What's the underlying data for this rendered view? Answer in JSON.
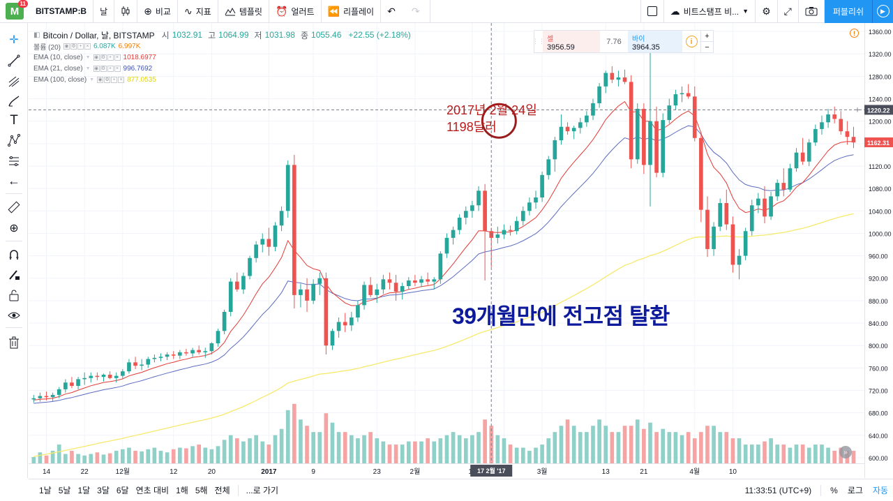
{
  "toolbar": {
    "symbol": "BITSTAMP:B",
    "interval": "날",
    "compare": "비교",
    "indicators": "지표",
    "templates": "템플릿",
    "alert": "얼러트",
    "replay": "리플레이",
    "exchange": "비트스탬프 비...",
    "publish": "퍼블리쉬",
    "logo_letter": "M",
    "logo_badge": "11"
  },
  "legend": {
    "title": "Bitcoin / Dollar, 날, BITSTAMP",
    "open_label": "시",
    "open": "1032.91",
    "high_label": "고",
    "high": "1064.99",
    "low_label": "저",
    "low": "1031.98",
    "close_label": "종",
    "close": "1055.46",
    "change": "+22.55 (+2.18%)"
  },
  "indicators": [
    {
      "name": "볼륨 (20)",
      "v1": "6.087K",
      "v2": "6.997K",
      "c1": "#26a69a",
      "c2": "#f57c00"
    },
    {
      "name": "EMA (10, close)",
      "v1": "1018.6977",
      "c1": "#e53935"
    },
    {
      "name": "EMA (21, close)",
      "v1": "996.7692",
      "c1": "#3f51b5"
    },
    {
      "name": "EMA (100, close)",
      "v1": "877.0535",
      "c1": "#f2e33c"
    }
  ],
  "trade": {
    "sell_label": "셀",
    "sell_price": "3956.59",
    "spread": "7.76",
    "buy_label": "바이",
    "buy_price": "3964.35",
    "plus": "+",
    "minus": "−"
  },
  "annotations": {
    "date_line1": "2017년 2월 24일",
    "date_line2": "1198달러",
    "headline": "39개월만에 전고점 탈환"
  },
  "bottombar": {
    "ranges": [
      "1날",
      "5날",
      "1달",
      "3달",
      "6달",
      "연초 대비",
      "1해",
      "5해",
      "전체"
    ],
    "goto": "...로 가기",
    "time": "11:33:51 (UTC+9)",
    "percent": "%",
    "log": "로그",
    "auto": "자동"
  },
  "chart_data": {
    "type": "candlestick",
    "title": "Bitcoin / Dollar, 날, BITSTAMP",
    "ylim": [
      590,
      1375
    ],
    "price_ticks": [
      600,
      640,
      680,
      720,
      760,
      800,
      840,
      880,
      920,
      960,
      1000,
      1040,
      1080,
      1120,
      1160,
      1200,
      1240,
      1280,
      1320,
      1360
    ],
    "x_tick_labels": [
      {
        "label": "14",
        "i": 2
      },
      {
        "label": "22",
        "i": 8
      },
      {
        "label": "12월",
        "i": 14
      },
      {
        "label": "12",
        "i": 22
      },
      {
        "label": "20",
        "i": 28
      },
      {
        "label": "2017",
        "i": 37
      },
      {
        "label": "9",
        "i": 44
      },
      {
        "label": "23",
        "i": 54
      },
      {
        "label": "2월",
        "i": 60
      },
      {
        "label": "13",
        "i": 69
      },
      {
        "label": "21",
        "i": 74
      },
      {
        "label": "3월",
        "i": 80
      },
      {
        "label": "13",
        "i": 90
      },
      {
        "label": "21",
        "i": 96
      },
      {
        "label": "4월",
        "i": 104
      },
      {
        "label": "10",
        "i": 110
      }
    ],
    "crosshair": {
      "date_label": "17 2월 '17",
      "price_label": "1220.22",
      "i": 72,
      "price": 1220.22
    },
    "last_price_label": "1162.31",
    "last_price": 1162.31,
    "annotation_circle": {
      "i": 73,
      "price": 1198
    },
    "colors": {
      "up": "#26a69a",
      "down": "#ef5350",
      "ema10": "#e53935",
      "ema21": "#5c6bc0",
      "ema100": "#f7e96b",
      "vol_up": "#8fd0c8",
      "vol_down": "#f5a3a3"
    },
    "ohlc": [
      [
        704,
        712,
        698,
        706
      ],
      [
        706,
        716,
        700,
        710
      ],
      [
        710,
        718,
        702,
        708
      ],
      [
        708,
        716,
        700,
        712
      ],
      [
        712,
        726,
        706,
        722
      ],
      [
        722,
        740,
        716,
        734
      ],
      [
        734,
        744,
        724,
        728
      ],
      [
        728,
        744,
        722,
        740
      ],
      [
        740,
        752,
        730,
        742
      ],
      [
        742,
        752,
        734,
        746
      ],
      [
        746,
        752,
        738,
        744
      ],
      [
        744,
        750,
        736,
        748
      ],
      [
        748,
        754,
        740,
        742
      ],
      [
        742,
        752,
        734,
        746
      ],
      [
        746,
        758,
        740,
        754
      ],
      [
        754,
        776,
        750,
        770
      ],
      [
        770,
        780,
        758,
        764
      ],
      [
        764,
        776,
        756,
        766
      ],
      [
        766,
        780,
        760,
        776
      ],
      [
        776,
        784,
        770,
        778
      ],
      [
        778,
        786,
        772,
        780
      ],
      [
        780,
        788,
        774,
        784
      ],
      [
        784,
        790,
        776,
        782
      ],
      [
        782,
        792,
        776,
        788
      ],
      [
        788,
        794,
        782,
        786
      ],
      [
        786,
        796,
        780,
        792
      ],
      [
        792,
        800,
        784,
        788
      ],
      [
        788,
        796,
        778,
        790
      ],
      [
        790,
        806,
        784,
        804
      ],
      [
        804,
        830,
        798,
        826
      ],
      [
        826,
        864,
        820,
        860
      ],
      [
        860,
        920,
        852,
        914
      ],
      [
        914,
        930,
        896,
        900
      ],
      [
        900,
        930,
        892,
        924
      ],
      [
        924,
        960,
        918,
        956
      ],
      [
        956,
        986,
        948,
        980
      ],
      [
        980,
        1000,
        966,
        990
      ],
      [
        990,
        1010,
        960,
        976
      ],
      [
        976,
        1020,
        968,
        1014
      ],
      [
        1014,
        1048,
        1004,
        1040
      ],
      [
        1040,
        1130,
        1028,
        1122
      ],
      [
        1122,
        1140,
        866,
        890
      ],
      [
        890,
        910,
        868,
        900
      ],
      [
        900,
        920,
        860,
        880
      ],
      [
        880,
        918,
        874,
        910
      ],
      [
        910,
        930,
        890,
        920
      ],
      [
        920,
        930,
        784,
        800
      ],
      [
        800,
        830,
        792,
        826
      ],
      [
        826,
        850,
        814,
        842
      ],
      [
        842,
        858,
        824,
        836
      ],
      [
        836,
        860,
        826,
        850
      ],
      [
        850,
        880,
        842,
        872
      ],
      [
        872,
        914,
        864,
        908
      ],
      [
        908,
        922,
        886,
        890
      ],
      [
        890,
        910,
        876,
        900
      ],
      [
        900,
        926,
        892,
        918
      ],
      [
        918,
        930,
        900,
        912
      ],
      [
        912,
        926,
        880,
        896
      ],
      [
        896,
        912,
        882,
        906
      ],
      [
        906,
        922,
        900,
        916
      ],
      [
        916,
        926,
        906,
        912
      ],
      [
        912,
        924,
        904,
        918
      ],
      [
        918,
        930,
        908,
        914
      ],
      [
        914,
        922,
        900,
        918
      ],
      [
        918,
        968,
        910,
        964
      ],
      [
        964,
        1000,
        956,
        992
      ],
      [
        992,
        1012,
        980,
        1006
      ],
      [
        1006,
        1034,
        998,
        1028
      ],
      [
        1028,
        1048,
        1016,
        1040
      ],
      [
        1040,
        1058,
        1028,
        1050
      ],
      [
        1050,
        1084,
        1040,
        1076
      ],
      [
        1076,
        1088,
        916,
        1004
      ],
      [
        1004,
        1010,
        940,
        992
      ],
      [
        992,
        1012,
        982,
        998
      ],
      [
        998,
        1016,
        990,
        1006
      ],
      [
        1006,
        1014,
        996,
        1004
      ],
      [
        1004,
        1030,
        998,
        1022
      ],
      [
        1022,
        1048,
        1014,
        1040
      ],
      [
        1040,
        1064,
        1032,
        1055
      ],
      [
        1055,
        1076,
        1044,
        1064
      ],
      [
        1064,
        1110,
        1056,
        1104
      ],
      [
        1104,
        1138,
        1096,
        1132
      ],
      [
        1132,
        1172,
        1110,
        1166
      ],
      [
        1166,
        1212,
        1158,
        1190
      ],
      [
        1190,
        1198,
        1176,
        1182
      ],
      [
        1182,
        1192,
        1168,
        1188
      ],
      [
        1188,
        1206,
        1178,
        1198
      ],
      [
        1198,
        1218,
        1190,
        1210
      ],
      [
        1210,
        1240,
        1202,
        1232
      ],
      [
        1232,
        1268,
        1224,
        1262
      ],
      [
        1262,
        1290,
        1250,
        1286
      ],
      [
        1286,
        1298,
        1268,
        1274
      ],
      [
        1274,
        1290,
        1262,
        1278
      ],
      [
        1278,
        1292,
        1266,
        1270
      ],
      [
        1270,
        1282,
        1116,
        1132
      ],
      [
        1132,
        1232,
        1124,
        1222
      ],
      [
        1222,
        1232,
        1106,
        1122
      ],
      [
        1122,
        1360,
        1048,
        1200
      ],
      [
        1200,
        1226,
        1100,
        1108
      ],
      [
        1108,
        1214,
        1100,
        1202
      ],
      [
        1202,
        1240,
        1196,
        1228
      ],
      [
        1228,
        1256,
        1220,
        1248
      ],
      [
        1248,
        1262,
        1234,
        1250
      ],
      [
        1250,
        1266,
        1240,
        1244
      ],
      [
        1244,
        1262,
        1164,
        1170
      ],
      [
        1170,
        1180,
        1020,
        1042
      ],
      [
        1042,
        1066,
        958,
        972
      ],
      [
        972,
        1020,
        960,
        1012
      ],
      [
        1012,
        1062,
        1004,
        1054
      ],
      [
        1054,
        1078,
        1006,
        1016
      ],
      [
        1016,
        1030,
        930,
        944
      ],
      [
        944,
        972,
        918,
        960
      ],
      [
        960,
        1010,
        952,
        1004
      ],
      [
        1004,
        1060,
        996,
        1050
      ],
      [
        1050,
        1072,
        1036,
        1062
      ],
      [
        1062,
        1084,
        1018,
        1030
      ],
      [
        1030,
        1074,
        1024,
        1066
      ],
      [
        1066,
        1096,
        1058,
        1090
      ],
      [
        1090,
        1116,
        1066,
        1078
      ],
      [
        1078,
        1124,
        1074,
        1116
      ],
      [
        1116,
        1152,
        1110,
        1144
      ],
      [
        1144,
        1170,
        1122,
        1128
      ],
      [
        1128,
        1168,
        1120,
        1162
      ],
      [
        1162,
        1194,
        1156,
        1186
      ],
      [
        1186,
        1210,
        1176,
        1198
      ],
      [
        1198,
        1222,
        1188,
        1212
      ],
      [
        1212,
        1226,
        1196,
        1204
      ],
      [
        1204,
        1218,
        1176,
        1182
      ],
      [
        1182,
        1200,
        1158,
        1172
      ],
      [
        1172,
        1190,
        1152,
        1162
      ]
    ],
    "volume": [
      620,
      635,
      625,
      640,
      660,
      630,
      640,
      630,
      625,
      630,
      635,
      628,
      632,
      640,
      645,
      650,
      640,
      638,
      645,
      650,
      640,
      635,
      645,
      650,
      648,
      655,
      660,
      650,
      645,
      655,
      675,
      690,
      680,
      670,
      680,
      690,
      670,
      660,
      690,
      710,
      770,
      790,
      740,
      720,
      700,
      700,
      760,
      730,
      700,
      700,
      690,
      680,
      690,
      700,
      680,
      670,
      660,
      660,
      660,
      670,
      670,
      670,
      680,
      670,
      680,
      690,
      700,
      690,
      680,
      690,
      700,
      740,
      720,
      690,
      680,
      660,
      650,
      650,
      640,
      650,
      660,
      680,
      700,
      720,
      740,
      720,
      700,
      700,
      720,
      740,
      720,
      700,
      700,
      720,
      720,
      740,
      710,
      730,
      700,
      710,
      700,
      700,
      690,
      700,
      680,
      700,
      720,
      720,
      700,
      700,
      680,
      680,
      660,
      660,
      660,
      670,
      680,
      660,
      660,
      650,
      660,
      660,
      650,
      660,
      660,
      650,
      640,
      650,
      640,
      640
    ],
    "volume_ylim": [
      600,
      980
    ]
  }
}
